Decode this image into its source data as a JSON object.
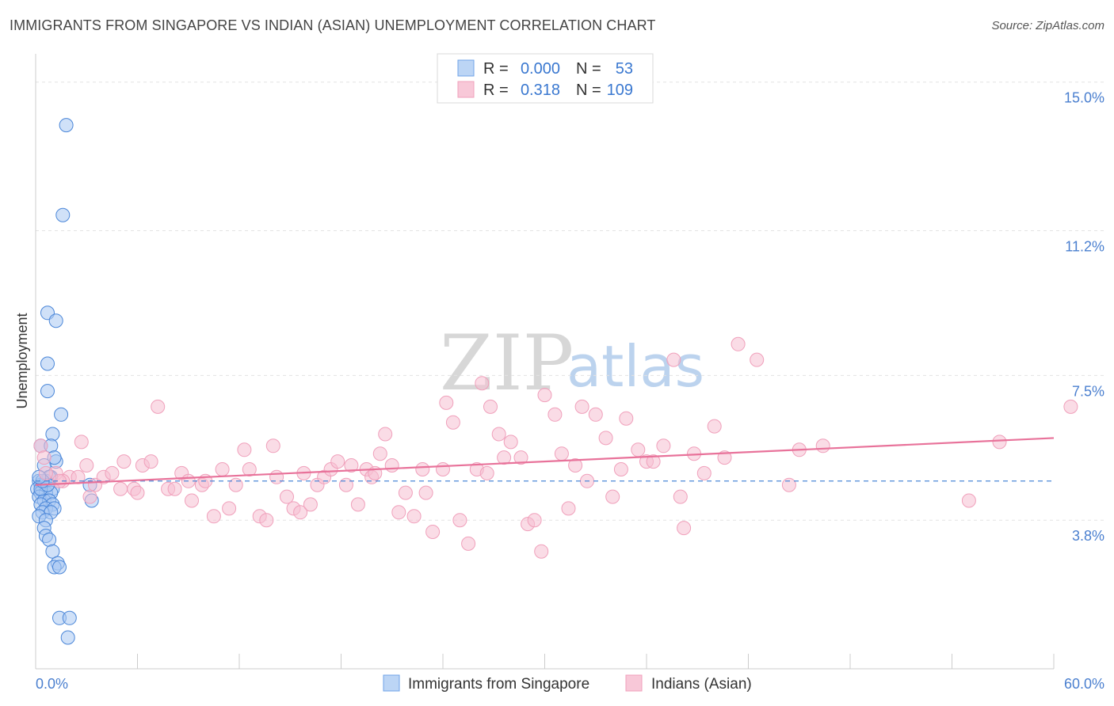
{
  "title": "IMMIGRANTS FROM SINGAPORE VS INDIAN (ASIAN) UNEMPLOYMENT CORRELATION CHART",
  "source": "Source: ZipAtlas.com",
  "watermark": {
    "zip": "ZIP",
    "atlas": "atlas"
  },
  "colors": {
    "blue": "#6fa3e8",
    "blue_line": "#4a86d8",
    "pink": "#f0a0bb",
    "pink_line": "#e8729a"
  },
  "legend": {
    "rows": [
      {
        "r_label": "R =",
        "r_value": "0.000",
        "n_label": "N =",
        "n_value": "53",
        "color": "blue"
      },
      {
        "r_label": "R =",
        "r_value": "0.318",
        "n_label": "N =",
        "n_value": "109",
        "color": "pink"
      }
    ]
  },
  "bottom_legend": [
    {
      "label": "Immigrants from Singapore",
      "color": "blue"
    },
    {
      "label": "Indians (Asian)",
      "color": "pink"
    }
  ],
  "chart_data": {
    "type": "scatter",
    "xlabel": "",
    "ylabel": "Unemployment",
    "xlim": [
      0,
      60
    ],
    "ylim": [
      0,
      15.5
    ],
    "x_tick_labels": [
      "0.0%",
      "60.0%"
    ],
    "y_ticks": [
      3.8,
      7.5,
      11.2,
      15.0
    ],
    "y_tick_labels": [
      "3.8%",
      "7.5%",
      "11.2%",
      "15.0%"
    ],
    "grid": true,
    "series": [
      {
        "name": "Immigrants from Singapore",
        "color": "blue",
        "trend": {
          "x": [
            0,
            60
          ],
          "y": [
            4.8,
            4.8
          ]
        },
        "points": [
          [
            1.8,
            13.9
          ],
          [
            1.6,
            11.6
          ],
          [
            0.7,
            9.1
          ],
          [
            1.2,
            8.9
          ],
          [
            0.7,
            7.8
          ],
          [
            0.7,
            7.1
          ],
          [
            1.5,
            6.5
          ],
          [
            1.0,
            6.0
          ],
          [
            0.3,
            5.7
          ],
          [
            0.9,
            5.7
          ],
          [
            1.2,
            5.3
          ],
          [
            1.1,
            5.4
          ],
          [
            0.5,
            5.2
          ],
          [
            0.9,
            4.9
          ],
          [
            0.2,
            4.8
          ],
          [
            0.6,
            4.8
          ],
          [
            0.8,
            4.9
          ],
          [
            0.3,
            4.7
          ],
          [
            0.5,
            4.7
          ],
          [
            0.7,
            4.7
          ],
          [
            0.1,
            4.6
          ],
          [
            0.4,
            4.6
          ],
          [
            1.0,
            4.6
          ],
          [
            3.2,
            4.7
          ],
          [
            0.3,
            4.5
          ],
          [
            0.6,
            4.5
          ],
          [
            0.9,
            4.5
          ],
          [
            0.2,
            4.4
          ],
          [
            0.5,
            4.3
          ],
          [
            0.8,
            4.3
          ],
          [
            1.0,
            4.2
          ],
          [
            0.3,
            4.2
          ],
          [
            0.6,
            4.1
          ],
          [
            1.1,
            4.1
          ],
          [
            0.4,
            4.0
          ],
          [
            0.9,
            4.0
          ],
          [
            0.2,
            3.9
          ],
          [
            0.6,
            3.8
          ],
          [
            3.3,
            4.3
          ],
          [
            0.5,
            3.6
          ],
          [
            0.6,
            3.4
          ],
          [
            0.8,
            3.3
          ],
          [
            1.0,
            3.0
          ],
          [
            1.3,
            2.7
          ],
          [
            1.1,
            2.6
          ],
          [
            1.4,
            2.6
          ],
          [
            1.4,
            1.3
          ],
          [
            2.0,
            1.3
          ],
          [
            1.9,
            0.8
          ],
          [
            0.3,
            4.6
          ],
          [
            0.7,
            4.7
          ],
          [
            0.4,
            4.8
          ],
          [
            0.2,
            4.9
          ]
        ]
      },
      {
        "name": "Indians (Asian)",
        "color": "pink",
        "trend": {
          "x": [
            0,
            60
          ],
          "y": [
            4.7,
            5.9
          ]
        },
        "points": [
          [
            0.3,
            5.7
          ],
          [
            0.5,
            5.4
          ],
          [
            1.2,
            5.0
          ],
          [
            2.0,
            4.9
          ],
          [
            2.5,
            4.9
          ],
          [
            1.6,
            4.8
          ],
          [
            2.7,
            5.8
          ],
          [
            3.0,
            5.2
          ],
          [
            3.5,
            4.7
          ],
          [
            4.0,
            4.9
          ],
          [
            4.5,
            5.0
          ],
          [
            5.0,
            4.6
          ],
          [
            5.2,
            5.3
          ],
          [
            5.8,
            4.6
          ],
          [
            6.3,
            5.2
          ],
          [
            6.8,
            5.3
          ],
          [
            7.2,
            6.7
          ],
          [
            7.8,
            4.6
          ],
          [
            8.2,
            4.6
          ],
          [
            8.6,
            5.0
          ],
          [
            9.0,
            4.8
          ],
          [
            9.2,
            4.3
          ],
          [
            9.8,
            4.7
          ],
          [
            10.0,
            4.8
          ],
          [
            10.5,
            3.9
          ],
          [
            11.0,
            5.1
          ],
          [
            11.4,
            4.1
          ],
          [
            11.8,
            4.7
          ],
          [
            12.3,
            5.6
          ],
          [
            12.6,
            5.1
          ],
          [
            13.2,
            3.9
          ],
          [
            13.6,
            3.8
          ],
          [
            14.0,
            5.7
          ],
          [
            14.2,
            4.9
          ],
          [
            14.8,
            4.4
          ],
          [
            15.2,
            4.1
          ],
          [
            15.6,
            4.0
          ],
          [
            15.8,
            5.0
          ],
          [
            16.2,
            4.2
          ],
          [
            16.6,
            4.7
          ],
          [
            17.0,
            4.9
          ],
          [
            17.4,
            5.1
          ],
          [
            17.8,
            5.3
          ],
          [
            18.3,
            4.7
          ],
          [
            18.6,
            5.2
          ],
          [
            19.0,
            4.2
          ],
          [
            19.5,
            5.1
          ],
          [
            19.8,
            4.9
          ],
          [
            20.0,
            5.0
          ],
          [
            20.3,
            5.5
          ],
          [
            20.6,
            6.0
          ],
          [
            21.0,
            5.2
          ],
          [
            21.4,
            4.0
          ],
          [
            21.8,
            4.5
          ],
          [
            22.3,
            3.9
          ],
          [
            22.8,
            5.1
          ],
          [
            23.0,
            4.5
          ],
          [
            23.4,
            3.5
          ],
          [
            24.0,
            5.1
          ],
          [
            24.2,
            6.8
          ],
          [
            24.6,
            6.3
          ],
          [
            25.0,
            3.8
          ],
          [
            25.5,
            3.2
          ],
          [
            26.0,
            5.1
          ],
          [
            26.3,
            7.3
          ],
          [
            26.6,
            5.0
          ],
          [
            26.8,
            6.7
          ],
          [
            27.3,
            6.0
          ],
          [
            27.6,
            5.4
          ],
          [
            28.0,
            5.8
          ],
          [
            28.6,
            5.4
          ],
          [
            29.0,
            3.7
          ],
          [
            29.4,
            3.8
          ],
          [
            29.8,
            3.0
          ],
          [
            30.0,
            7.0
          ],
          [
            30.6,
            6.5
          ],
          [
            31.0,
            5.5
          ],
          [
            31.4,
            4.1
          ],
          [
            31.8,
            5.2
          ],
          [
            32.2,
            6.7
          ],
          [
            32.5,
            4.8
          ],
          [
            33.0,
            6.5
          ],
          [
            33.6,
            5.9
          ],
          [
            34.0,
            4.4
          ],
          [
            34.5,
            5.1
          ],
          [
            34.8,
            6.4
          ],
          [
            35.5,
            5.6
          ],
          [
            36.0,
            5.3
          ],
          [
            36.4,
            5.3
          ],
          [
            37.0,
            5.7
          ],
          [
            37.6,
            7.9
          ],
          [
            38.0,
            4.4
          ],
          [
            38.2,
            3.6
          ],
          [
            38.8,
            5.5
          ],
          [
            39.4,
            5.0
          ],
          [
            40.0,
            6.2
          ],
          [
            40.6,
            5.4
          ],
          [
            41.4,
            8.3
          ],
          [
            42.5,
            7.9
          ],
          [
            44.4,
            4.7
          ],
          [
            45.0,
            5.6
          ],
          [
            46.4,
            5.7
          ],
          [
            55.0,
            4.3
          ],
          [
            56.8,
            5.8
          ],
          [
            61.0,
            6.7
          ],
          [
            0.6,
            5.0
          ],
          [
            1.4,
            4.8
          ],
          [
            3.2,
            4.4
          ],
          [
            6.0,
            4.5
          ]
        ]
      }
    ]
  }
}
